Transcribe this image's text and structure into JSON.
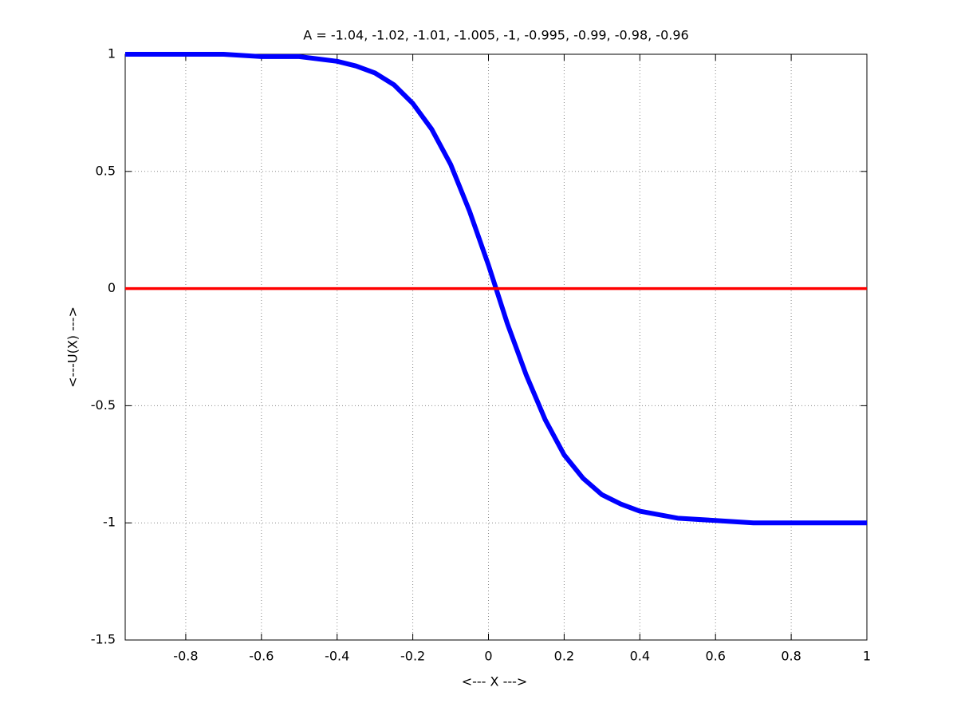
{
  "chart_data": {
    "type": "line",
    "title": "A = -1.04, -1.02, -1.01, -1.005, -1, -0.995, -0.99, -0.98, -0.96",
    "x_label": "<--- X --->",
    "y_label": "<---U(X) --->",
    "x": [
      -0.96,
      -0.9,
      -0.8,
      -0.7,
      -0.6,
      -0.5,
      -0.4,
      -0.35,
      -0.3,
      -0.25,
      -0.2,
      -0.15,
      -0.1,
      -0.05,
      0,
      0.02,
      0.05,
      0.1,
      0.15,
      0.2,
      0.25,
      0.3,
      0.35,
      0.4,
      0.5,
      0.6,
      0.7,
      0.8,
      0.9,
      1
    ],
    "series": [
      {
        "color": "#0000ff",
        "values": [
          1,
          1,
          1,
          1,
          0.99,
          0.99,
          0.97,
          0.95,
          0.92,
          0.87,
          0.79,
          0.68,
          0.53,
          0.33,
          0.1,
          0,
          -0.15,
          -0.37,
          -0.56,
          -0.71,
          -0.81,
          -0.88,
          -0.92,
          -0.95,
          -0.98,
          -0.99,
          -1,
          -1,
          -1,
          -1
        ]
      },
      {
        "color": "#ff0000",
        "values": [
          0,
          0,
          0,
          0,
          0,
          0,
          0,
          0,
          0,
          0,
          0,
          0,
          0,
          0,
          0,
          0,
          0,
          0,
          0,
          0,
          0,
          0,
          0,
          0,
          0,
          0,
          0,
          0,
          0,
          0
        ]
      }
    ],
    "xlim": [
      -0.96,
      1
    ],
    "ylim": [
      -1.5,
      1
    ],
    "xticks": [
      -0.8,
      -0.6,
      -0.4,
      -0.2,
      0,
      0.2,
      0.4,
      0.6,
      0.8,
      1
    ],
    "yticks": [
      -1.5,
      -1,
      -0.5,
      0,
      0.5,
      1
    ],
    "grid": true
  }
}
